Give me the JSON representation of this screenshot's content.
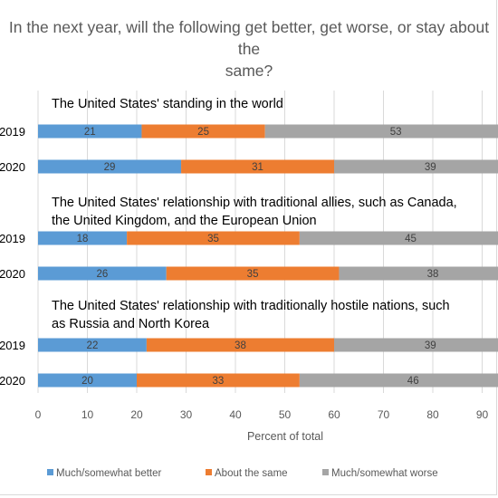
{
  "chart_data": {
    "type": "bar",
    "orientation": "horizontal",
    "stacked": true,
    "title": "In the next year, will the following get better, get worse, or stay about the same?",
    "xlabel": "Percent of total",
    "ylabel": "",
    "xlim": [
      0,
      100
    ],
    "xticks": [
      0,
      10,
      20,
      30,
      40,
      50,
      60,
      70,
      80,
      90
    ],
    "grid": "vertical",
    "legend_position": "bottom",
    "colors": {
      "better": "#5b9bd5",
      "same": "#ed7d31",
      "worse": "#a5a5a5"
    },
    "legend": [
      "Much/somewhat better",
      "About the same",
      "Much/somewhat worse"
    ],
    "groups": [
      {
        "label": "The United States' standing in the world",
        "rows": [
          {
            "category": "2019",
            "values": [
              21,
              25,
              53
            ]
          },
          {
            "category": "2020",
            "values": [
              29,
              31,
              39
            ]
          }
        ]
      },
      {
        "label": "The United States' relationship with traditional allies, such as Canada, the United Kingdom, and the European Union",
        "rows": [
          {
            "category": "2019",
            "values": [
              18,
              35,
              45
            ]
          },
          {
            "category": "2020",
            "values": [
              26,
              35,
              38
            ]
          }
        ]
      },
      {
        "label": "The United States' relationship with traditionally hostile nations, such as Russia and North Korea",
        "rows": [
          {
            "category": "2019",
            "values": [
              22,
              38,
              39
            ]
          },
          {
            "category": "2020",
            "values": [
              20,
              33,
              46
            ]
          }
        ]
      }
    ]
  }
}
